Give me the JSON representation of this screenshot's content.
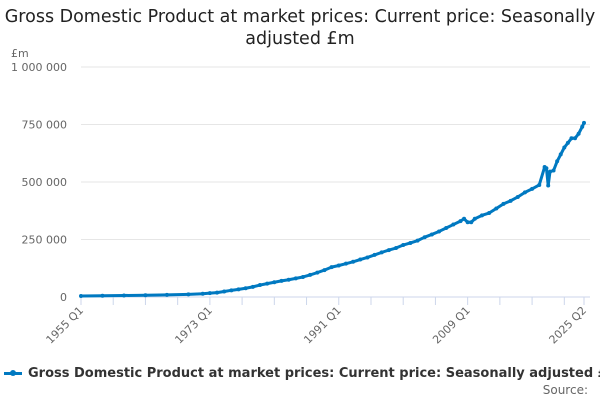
{
  "chart_data": {
    "type": "line",
    "title": "Gross Domestic Product at market prices: Current price: Seasonally adjusted £m",
    "ylabel": "£m",
    "xlabel": "",
    "ylim": [
      0,
      1000000
    ],
    "xlim": [
      1955.0,
      2025.25
    ],
    "y_ticks": [
      0,
      250000,
      500000,
      750000,
      1000000
    ],
    "y_tick_labels": [
      "0",
      "250 000",
      "500 000",
      "750 000",
      "1 000 000"
    ],
    "x_tick_labels": [
      "1955 Q1",
      "1973 Q1",
      "1991 Q1",
      "2009 Q1",
      "2025 Q2"
    ],
    "x_tick_values": [
      1955.0,
      1973.0,
      1991.0,
      2009.0,
      2025.25
    ],
    "grid": true,
    "legend_position": "bottom",
    "series": [
      {
        "name": "Gross Domestic Product at market prices: Current price: Seasonally adjusted £m",
        "color": "#0079c1",
        "x": [
          1955,
          1958,
          1961,
          1964,
          1967,
          1970,
          1972,
          1973,
          1974,
          1975,
          1976,
          1977,
          1978,
          1979,
          1980,
          1981,
          1982,
          1983,
          1984,
          1985,
          1986,
          1987,
          1988,
          1989,
          1990,
          1991,
          1992,
          1993,
          1994,
          1995,
          1996,
          1997,
          1998,
          1999,
          2000,
          2001,
          2002,
          2003,
          2004,
          2005,
          2006,
          2007,
          2008,
          2008.5,
          2009,
          2009.5,
          2010,
          2011,
          2012,
          2013,
          2014,
          2015,
          2016,
          2017,
          2018,
          2019,
          2019.75,
          2020,
          2020.25,
          2020.5,
          2021,
          2021.5,
          2022,
          2022.5,
          2023,
          2023.5,
          2024,
          2024.5,
          2025,
          2025.25
        ],
        "values": [
          4500,
          5500,
          6600,
          7800,
          9300,
          11500,
          14000,
          17000,
          19000,
          24000,
          29000,
          33000,
          38000,
          44000,
          52000,
          58000,
          64000,
          70000,
          75000,
          81000,
          87000,
          96000,
          106000,
          117000,
          130000,
          137000,
          145000,
          153000,
          163000,
          172000,
          183000,
          194000,
          204000,
          213000,
          226000,
          235000,
          245000,
          260000,
          272000,
          285000,
          300000,
          315000,
          330000,
          340000,
          325000,
          325000,
          340000,
          355000,
          365000,
          385000,
          405000,
          418000,
          435000,
          455000,
          470000,
          487000,
          565000,
          560000,
          485000,
          545000,
          550000,
          590000,
          620000,
          650000,
          670000,
          690000,
          690000,
          710000,
          740000,
          757000
        ]
      }
    ]
  },
  "source_label": "Source:"
}
